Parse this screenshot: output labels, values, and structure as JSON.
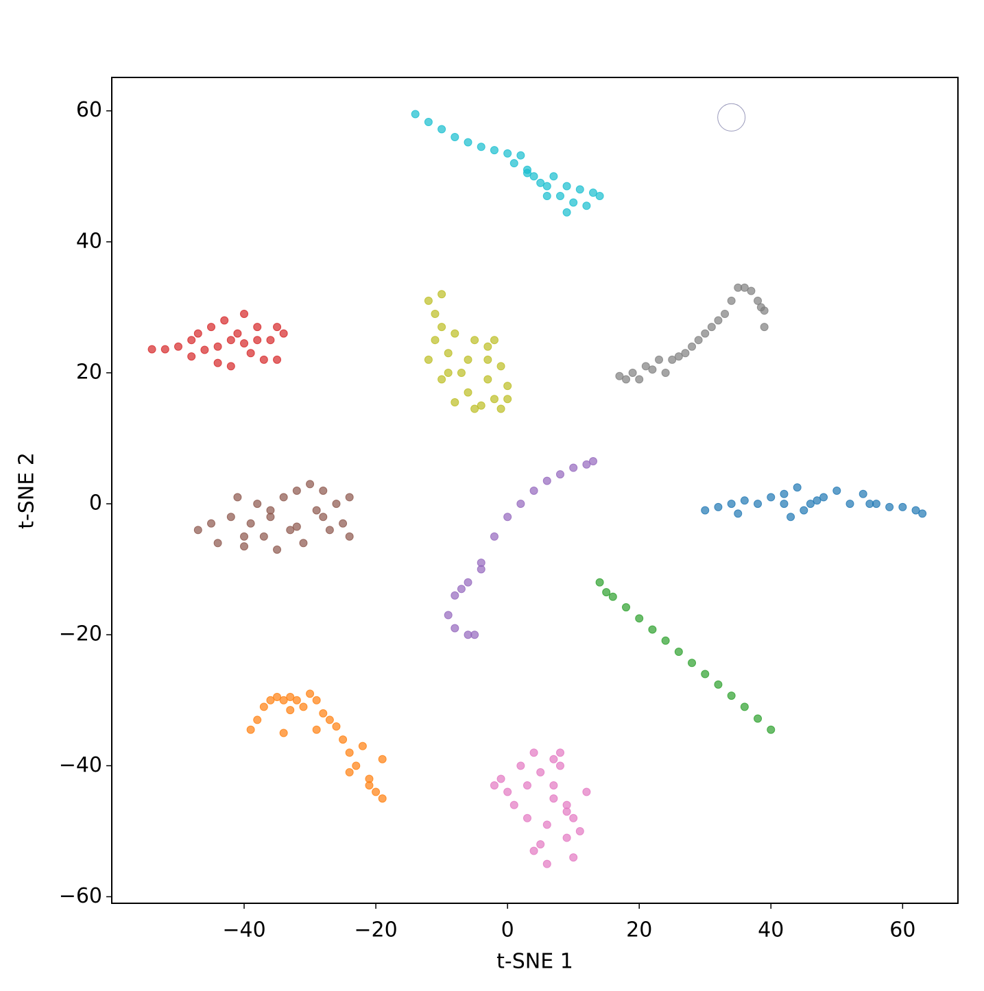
{
  "chart_data": {
    "type": "scatter",
    "xlabel": "t-SNE 1",
    "ylabel": "t-SNE 2",
    "xlim": [
      -60.1,
      68.4
    ],
    "ylim": [
      -61.0,
      65.1
    ],
    "xticks": [
      {
        "value": -40,
        "label": "−40"
      },
      {
        "value": -20,
        "label": "−20"
      },
      0,
      20,
      40,
      60
    ],
    "yticks": [
      {
        "value": -60,
        "label": "−60"
      },
      {
        "value": -40,
        "label": "−40"
      },
      {
        "value": -20,
        "label": "−20"
      },
      0,
      20,
      40,
      60
    ],
    "series": [
      {
        "color": "#1f77b4",
        "x": [
          30,
          32,
          34,
          36,
          38,
          40,
          42,
          43,
          44,
          45,
          46,
          48,
          50,
          52,
          54,
          56,
          58,
          60,
          62,
          63,
          42,
          47,
          35,
          55
        ],
        "values": [
          -1,
          -0.5,
          0,
          0.5,
          0,
          1,
          0,
          -2,
          2.5,
          -1,
          0,
          1,
          2,
          0,
          1.5,
          0,
          -0.5,
          -0.5,
          -1,
          -1.5,
          1.5,
          0.5,
          -1.5,
          0
        ]
      },
      {
        "color": "#ff7f0e",
        "x": [
          -39,
          -38,
          -37,
          -36,
          -35,
          -34,
          -33,
          -32,
          -31,
          -30,
          -29,
          -28,
          -27,
          -26,
          -25,
          -24,
          -23,
          -22,
          -21,
          -20,
          -19,
          -19,
          -21,
          -24,
          -34,
          -29,
          -33
        ],
        "values": [
          -34.5,
          -33,
          -31,
          -30,
          -29.5,
          -30,
          -29.5,
          -30,
          -31,
          -29,
          -30,
          -32,
          -33,
          -34,
          -36,
          -38,
          -40,
          -37,
          -42,
          -44,
          -45,
          -39,
          -43,
          -41,
          -35,
          -34.5,
          -31.5
        ]
      },
      {
        "color": "#2ca02c",
        "x": [
          14,
          15,
          16,
          18,
          20,
          22,
          24,
          26,
          28,
          30,
          32,
          34,
          36,
          38,
          40
        ],
        "values": [
          -12,
          -13.5,
          -14.2,
          -15.8,
          -17.5,
          -19.2,
          -20.9,
          -22.6,
          -24.3,
          -26,
          -27.6,
          -29.3,
          -31,
          -32.8,
          -34.5
        ]
      },
      {
        "color": "#d62728",
        "x": [
          -54,
          -52,
          -50,
          -48,
          -47,
          -46,
          -45,
          -44,
          -43,
          -42,
          -41,
          -40,
          -39,
          -38,
          -37,
          -36,
          -35,
          -34,
          -44,
          -42,
          -38,
          -35,
          -48,
          -40
        ],
        "values": [
          23.6,
          23.6,
          24,
          25,
          26,
          23.5,
          27,
          24,
          28,
          21,
          26,
          29,
          23,
          27,
          22,
          25,
          27,
          26,
          21.5,
          25,
          25,
          22,
          22.5,
          24.5
        ]
      },
      {
        "color": "#9467bd",
        "x": [
          -9,
          -8,
          -6,
          -4,
          -2,
          0,
          2,
          4,
          6,
          8,
          10,
          12,
          13,
          -8,
          -6,
          -5,
          -4,
          -7
        ],
        "values": [
          -17,
          -14,
          -12,
          -9,
          -5,
          -2,
          0,
          2,
          3.5,
          4.5,
          5.5,
          6,
          6.5,
          -19,
          -20,
          -20,
          -10,
          -13
        ]
      },
      {
        "color": "#8c564b",
        "x": [
          -47,
          -45,
          -44,
          -42,
          -41,
          -40,
          -39,
          -38,
          -37,
          -36,
          -35,
          -34,
          -33,
          -32,
          -31,
          -30,
          -29,
          -28,
          -27,
          -26,
          -25,
          -24,
          -24,
          -40,
          -36,
          -32,
          -28
        ],
        "values": [
          -4,
          -3,
          -6,
          -2,
          1,
          -5,
          -3,
          0,
          -5,
          -2,
          -7,
          1,
          -4,
          2,
          -6,
          3,
          -1,
          2,
          -4,
          0,
          -3,
          1,
          -5,
          -6.5,
          -1,
          -3.5,
          -2
        ]
      },
      {
        "color": "#e377c2",
        "x": [
          -1,
          0,
          1,
          2,
          3,
          4,
          5,
          6,
          7,
          8,
          9,
          10,
          11,
          12,
          4,
          5,
          6,
          7,
          8,
          9,
          10,
          3,
          7,
          9,
          -2
        ],
        "values": [
          -42,
          -44,
          -46,
          -40,
          -48,
          -38,
          -52,
          -55,
          -43,
          -40,
          -47,
          -54,
          -50,
          -44,
          -53,
          -41,
          -49,
          -45,
          -38,
          -51,
          -48,
          -43,
          -39,
          -46,
          -43
        ]
      },
      {
        "color": "#7f7f7f",
        "x": [
          17,
          18,
          19,
          20,
          21,
          22,
          23,
          24,
          25,
          26,
          27,
          28,
          29,
          30,
          31,
          32,
          33,
          34,
          35,
          36,
          37,
          38,
          39,
          39,
          38.5
        ],
        "values": [
          19.5,
          19,
          20,
          19,
          21,
          20.5,
          22,
          20,
          22,
          22.5,
          23,
          24,
          25,
          26,
          27,
          28,
          29,
          31,
          33,
          33,
          32.5,
          31,
          29.5,
          27,
          30
        ]
      },
      {
        "color": "#bcbd22",
        "x": [
          -12,
          -11,
          -11,
          -10,
          -12,
          -10,
          -9,
          -8,
          -7,
          -6,
          -5,
          -4,
          -3,
          -2,
          -1,
          0,
          0,
          -1,
          -3,
          -5,
          -8,
          -9,
          -6,
          -3,
          -2,
          -10
        ],
        "values": [
          31,
          29,
          25,
          27,
          22,
          19,
          23,
          26,
          20,
          17,
          25,
          15,
          22,
          16,
          21,
          18,
          16,
          14.5,
          24,
          14.5,
          15.5,
          20,
          22,
          19,
          25,
          32
        ]
      },
      {
        "color": "#17becf",
        "x": [
          -14,
          -12,
          -10,
          -8,
          -6,
          -4,
          -2,
          0,
          1,
          2,
          3,
          4,
          5,
          6,
          7,
          8,
          9,
          10,
          11,
          12,
          13,
          14,
          9,
          6,
          3
        ],
        "values": [
          59.5,
          58.3,
          57.2,
          56,
          55.2,
          54.5,
          54,
          53.5,
          52,
          53.2,
          51,
          50,
          49,
          48.5,
          50,
          47,
          48.5,
          46,
          48,
          45.5,
          47.5,
          47,
          44.5,
          47,
          50.5
        ]
      },
      {
        "color": "#9999bb",
        "hollow": true,
        "x": [
          34
        ],
        "values": [
          59
        ]
      }
    ]
  }
}
